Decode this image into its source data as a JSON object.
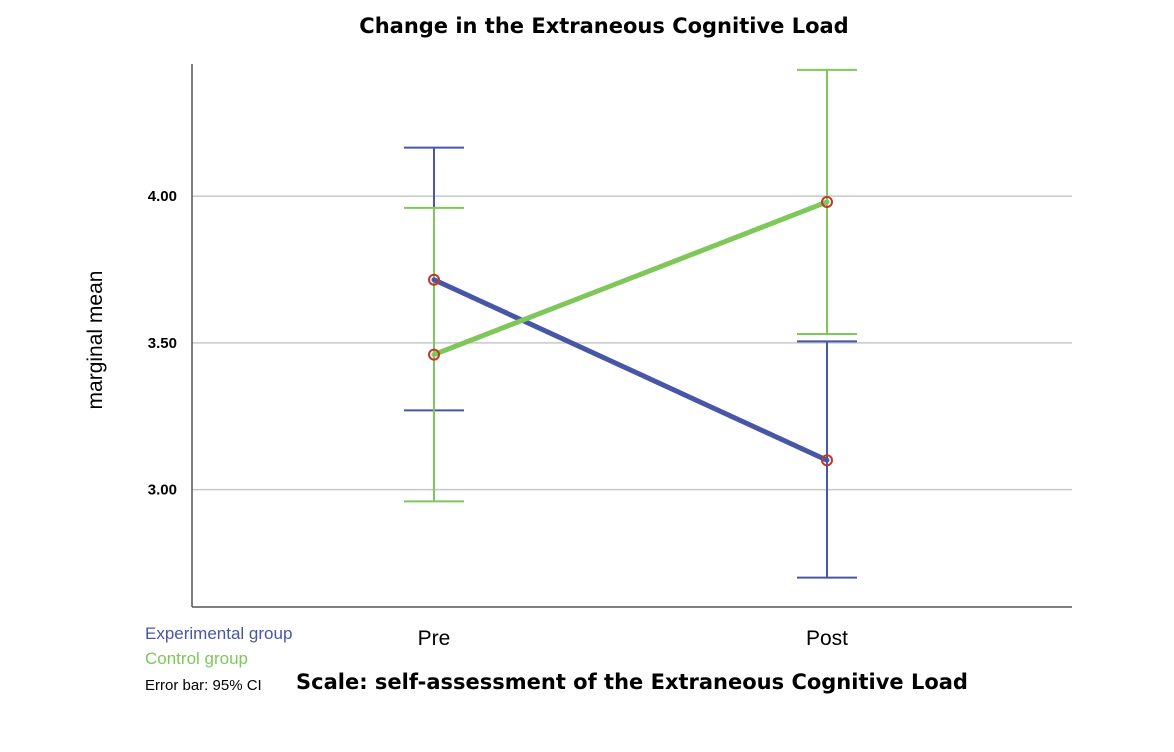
{
  "chart_data": {
    "type": "line",
    "title": "Change in the Extraneous Cognitive Load",
    "xlabel": "Scale: self-assessment of the Extraneous Cognitive Load",
    "ylabel": "marginal mean",
    "categories": [
      "Pre",
      "Post"
    ],
    "ylim": [
      2.6,
      4.45
    ],
    "yticks": [
      3.0,
      3.5,
      4.0
    ],
    "ytick_labels": [
      "3.00",
      "3.50",
      "4.00"
    ],
    "grid": true,
    "series": [
      {
        "name": "Experimental group",
        "color": "#4756a6",
        "values": [
          3.715,
          3.1
        ],
        "ci_lower": [
          3.27,
          2.7
        ],
        "ci_upper": [
          4.165,
          3.505
        ]
      },
      {
        "name": "Control group",
        "color": "#7fc75a",
        "values": [
          3.46,
          3.98
        ],
        "ci_lower": [
          2.96,
          3.53
        ],
        "ci_upper": [
          3.96,
          4.43
        ]
      }
    ],
    "marker_color": "#c0392b",
    "note": "Error bar: 95% CI"
  }
}
